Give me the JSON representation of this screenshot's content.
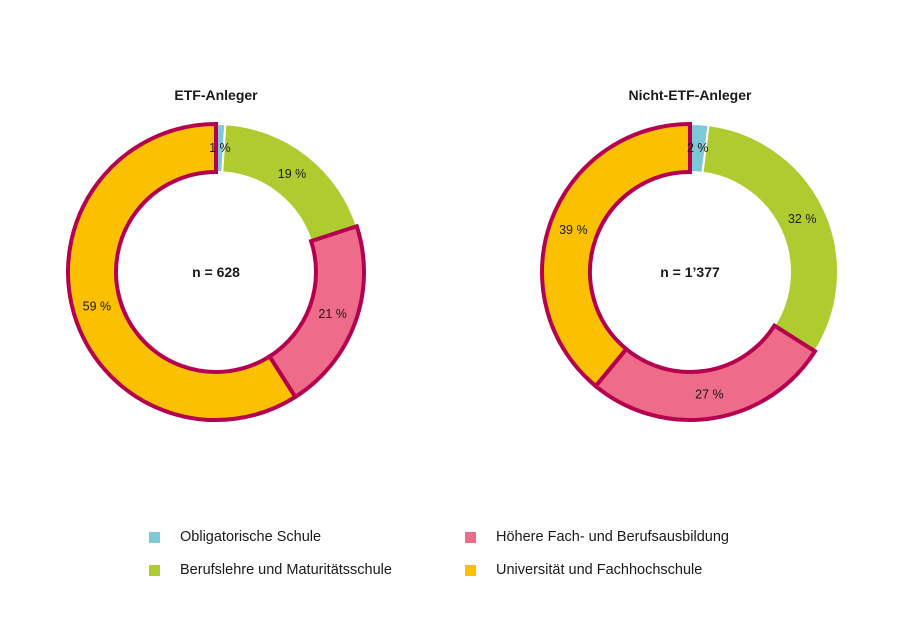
{
  "chart_data": {
    "type": "pie",
    "variant": "donut",
    "series_colors": {
      "Obligatorische Schule": "#7ec8d7",
      "Berufslehre und Maturitätsschule": "#aecb2f",
      "Höhere Fach- und Berufsausbildung": "#ee6b8a",
      "Universität und Fachhochschule": "#fbc100"
    },
    "outline_color": "#b5004f",
    "charts": [
      {
        "title": "ETF-Anleger",
        "center_label": "n = 628",
        "slices": [
          {
            "category": "Obligatorische Schule",
            "value": 1,
            "label": "1 %"
          },
          {
            "category": "Berufslehre und Maturitätsschule",
            "value": 19,
            "label": "19 %"
          },
          {
            "category": "Höhere Fach- und Berufsausbildung",
            "value": 21,
            "label": "21 %"
          },
          {
            "category": "Universität und Fachhochschule",
            "value": 59,
            "label": "59 %"
          }
        ]
      },
      {
        "title": "Nicht-ETF-Anleger",
        "center_label": "n = 1’377",
        "slices": [
          {
            "category": "Obligatorische Schule",
            "value": 2,
            "label": "2 %"
          },
          {
            "category": "Berufslehre und Maturitätsschule",
            "value": 32,
            "label": "32 %"
          },
          {
            "category": "Höhere Fach- und Berufsausbildung",
            "value": 27,
            "label": "27 %"
          },
          {
            "category": "Universität und Fachhochschule",
            "value": 39,
            "label": "39 %"
          }
        ]
      }
    ]
  },
  "legend": {
    "items": [
      {
        "label": "Obligatorische Schule",
        "color": "#7ec8d7"
      },
      {
        "label": "Höhere Fach- und Berufsausbildung",
        "color": "#ee6b8a"
      },
      {
        "label": "Berufslehre und Maturitätsschule",
        "color": "#aecb2f"
      },
      {
        "label": "Universität und Fachhochschule",
        "color": "#fbc100"
      }
    ]
  }
}
